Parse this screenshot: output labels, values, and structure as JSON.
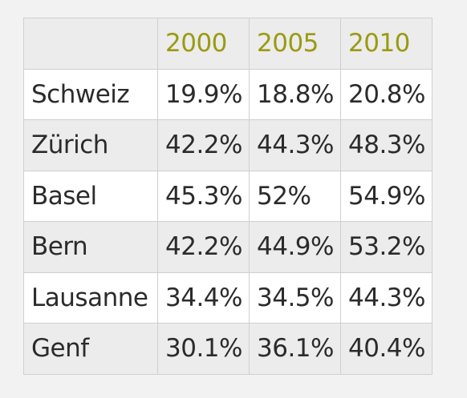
{
  "table": {
    "headers": [
      "",
      "2000",
      "2005",
      "2010"
    ],
    "rows": [
      {
        "city": "Schweiz",
        "values": [
          "19.9%",
          "18.8%",
          "20.8%"
        ]
      },
      {
        "city": "Zürich",
        "values": [
          "42.2%",
          "44.3%",
          "48.3%"
        ]
      },
      {
        "city": "Basel",
        "values": [
          "45.3%",
          "52%",
          "54.9%"
        ]
      },
      {
        "city": "Bern",
        "values": [
          "42.2%",
          "44.9%",
          "53.2%"
        ]
      },
      {
        "city": "Lausanne",
        "values": [
          "34.4%",
          "34.5%",
          "44.3%"
        ]
      },
      {
        "city": "Genf",
        "values": [
          "30.1%",
          "36.1%",
          "40.4%"
        ]
      }
    ]
  },
  "colors": {
    "header_text": "#9a9a12",
    "body_text": "#2b2b2b",
    "shaded_row": "#ececec",
    "plain_row": "#ffffff",
    "border": "#cfcfcf"
  }
}
